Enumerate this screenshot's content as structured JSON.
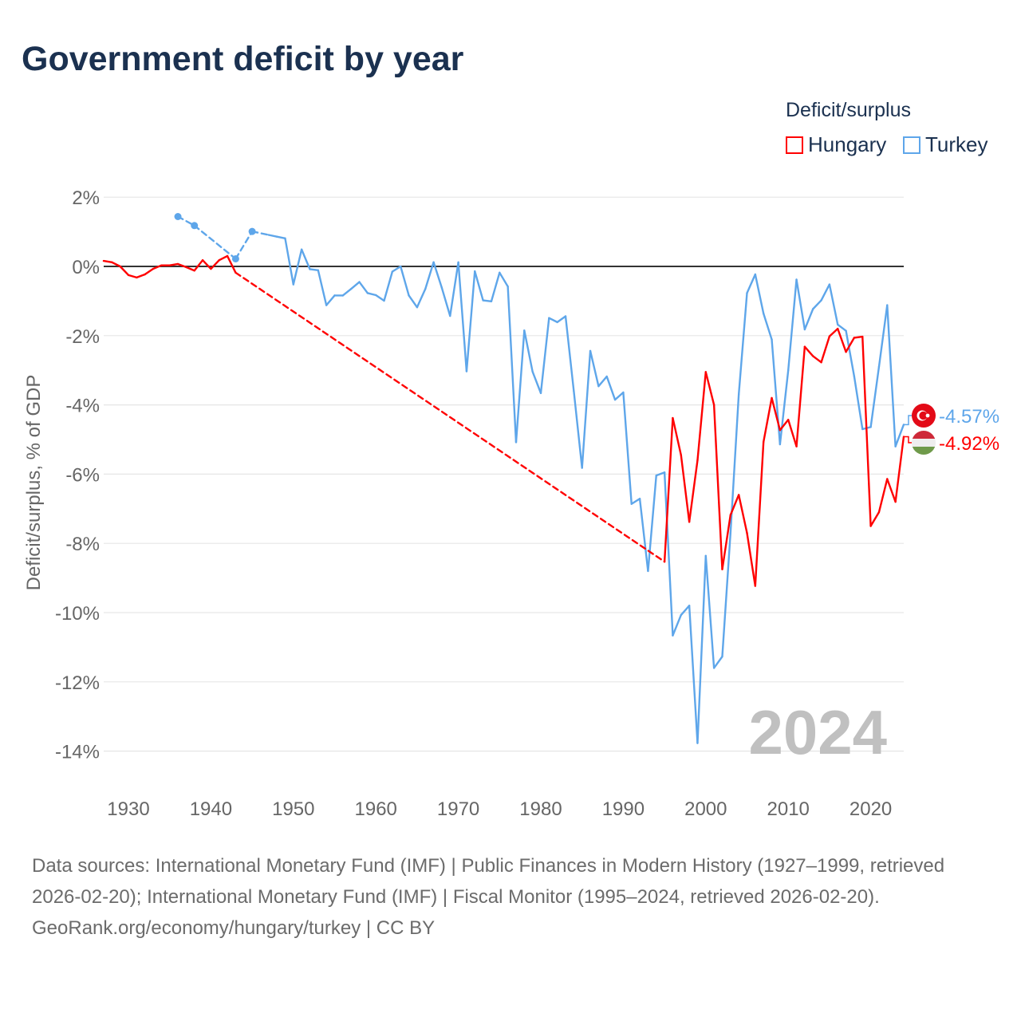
{
  "title": "Government deficit by year",
  "legend": {
    "title": "Deficit/surplus",
    "items": [
      "Hungary",
      "Turkey"
    ]
  },
  "footer": {
    "sources": "Data sources: International Monetary Fund (IMF) | Public Finances in Modern History (1927–1999, retrieved 2026-02-20); International Monetary Fund (IMF) | Fiscal Monitor (1995–2024, retrieved 2026-02-20).",
    "credit": "GeoRank.org/economy/hungary/turkey | CC BY"
  },
  "chart_data": {
    "type": "line",
    "title": "Government deficit by year",
    "xlabel": "",
    "ylabel": "Deficit/surplus, % of GDP",
    "xlim": [
      1927,
      2024
    ],
    "ylim": [
      -14,
      2
    ],
    "yticks": [
      2,
      0,
      -2,
      -4,
      -6,
      -8,
      -10,
      -12,
      -14
    ],
    "ytick_labels": [
      "2%",
      "0%",
      "-2%",
      "-4%",
      "-6%",
      "-8%",
      "-10%",
      "-12%",
      "-14%"
    ],
    "xticks": [
      1930,
      1940,
      1950,
      1960,
      1970,
      1980,
      1990,
      2000,
      2010,
      2020
    ],
    "xtick_labels": [
      "1930",
      "1940",
      "1950",
      "1960",
      "1970",
      "1980",
      "1990",
      "2000",
      "2010",
      "2020"
    ],
    "year_watermark": "2024",
    "grid": true,
    "legend_position": "top-right",
    "series": [
      {
        "name": "Hungary",
        "color": "#ff0000",
        "end_label": "-4.92%",
        "flag": "hungary-flag",
        "points": [
          [
            1927,
            0.16
          ],
          [
            1928,
            0.12
          ],
          [
            1929,
            0.0
          ],
          [
            1930,
            -0.25
          ],
          [
            1931,
            -0.32
          ],
          [
            1932,
            -0.23
          ],
          [
            1933,
            -0.07
          ],
          [
            1934,
            0.03
          ],
          [
            1935,
            0.03
          ],
          [
            1936,
            0.07
          ],
          [
            1937,
            -0.02
          ],
          [
            1938,
            -0.12
          ],
          [
            1939,
            0.18
          ],
          [
            1940,
            -0.07
          ],
          [
            1941,
            0.18
          ],
          [
            1942,
            0.3
          ],
          [
            1943,
            -0.18
          ],
          [
            1995,
            -8.53
          ],
          [
            1996,
            -4.38
          ],
          [
            1997,
            -5.45
          ],
          [
            1998,
            -7.38
          ],
          [
            1999,
            -5.6
          ],
          [
            2000,
            -3.05
          ],
          [
            2001,
            -4.0
          ],
          [
            2002,
            -8.75
          ],
          [
            2003,
            -7.18
          ],
          [
            2004,
            -6.6
          ],
          [
            2005,
            -7.7
          ],
          [
            2006,
            -9.23
          ],
          [
            2007,
            -5.07
          ],
          [
            2008,
            -3.8
          ],
          [
            2009,
            -4.73
          ],
          [
            2010,
            -4.43
          ],
          [
            2011,
            -5.2
          ],
          [
            2012,
            -2.32
          ],
          [
            2013,
            -2.59
          ],
          [
            2014,
            -2.77
          ],
          [
            2015,
            -2.02
          ],
          [
            2016,
            -1.8
          ],
          [
            2017,
            -2.47
          ],
          [
            2018,
            -2.06
          ],
          [
            2019,
            -2.03
          ],
          [
            2020,
            -7.5
          ],
          [
            2021,
            -7.1
          ],
          [
            2022,
            -6.14
          ],
          [
            2023,
            -6.8
          ],
          [
            2024,
            -4.92
          ]
        ]
      },
      {
        "name": "Turkey",
        "color": "#5ea6ea",
        "end_label": "-4.57%",
        "flag": "turkey-flag",
        "points": [
          [
            1936,
            1.44
          ],
          [
            1938,
            1.18
          ],
          [
            1943,
            0.22
          ],
          [
            1945,
            1.01
          ],
          [
            1947,
            0.91
          ],
          [
            1948,
            0.86
          ],
          [
            1949,
            0.81
          ],
          [
            1950,
            -0.52
          ],
          [
            1951,
            0.49
          ],
          [
            1952,
            -0.08
          ],
          [
            1953,
            -0.11
          ],
          [
            1954,
            -1.12
          ],
          [
            1955,
            -0.84
          ],
          [
            1956,
            -0.84
          ],
          [
            1957,
            -0.65
          ],
          [
            1958,
            -0.45
          ],
          [
            1959,
            -0.77
          ],
          [
            1960,
            -0.83
          ],
          [
            1961,
            -0.99
          ],
          [
            1962,
            -0.15
          ],
          [
            1963,
            0.0
          ],
          [
            1964,
            -0.84
          ],
          [
            1965,
            -1.18
          ],
          [
            1966,
            -0.65
          ],
          [
            1967,
            0.12
          ],
          [
            1968,
            -0.62
          ],
          [
            1969,
            -1.43
          ],
          [
            1970,
            0.12
          ],
          [
            1971,
            -3.03
          ],
          [
            1972,
            -0.14
          ],
          [
            1973,
            -0.98
          ],
          [
            1974,
            -1.01
          ],
          [
            1975,
            -0.18
          ],
          [
            1976,
            -0.58
          ],
          [
            1977,
            -5.08
          ],
          [
            1978,
            -1.85
          ],
          [
            1979,
            -3.04
          ],
          [
            1980,
            -3.66
          ],
          [
            1981,
            -1.49
          ],
          [
            1982,
            -1.61
          ],
          [
            1983,
            -1.44
          ],
          [
            1984,
            -3.6
          ],
          [
            1985,
            -5.82
          ],
          [
            1986,
            -2.44
          ],
          [
            1987,
            -3.46
          ],
          [
            1988,
            -3.18
          ],
          [
            1989,
            -3.85
          ],
          [
            1990,
            -3.64
          ],
          [
            1991,
            -6.86
          ],
          [
            1992,
            -6.71
          ],
          [
            1993,
            -8.8
          ],
          [
            1994,
            -6.04
          ],
          [
            1995,
            -5.95
          ],
          [
            1996,
            -10.66
          ],
          [
            1997,
            -10.07
          ],
          [
            1998,
            -9.8
          ],
          [
            1999,
            -13.77
          ],
          [
            2000,
            -8.36
          ],
          [
            2001,
            -11.6
          ],
          [
            2002,
            -11.27
          ],
          [
            2003,
            -7.7
          ],
          [
            2004,
            -3.7
          ],
          [
            2005,
            -0.77
          ],
          [
            2006,
            -0.23
          ],
          [
            2007,
            -1.36
          ],
          [
            2008,
            -2.11
          ],
          [
            2009,
            -5.14
          ],
          [
            2010,
            -3.0
          ],
          [
            2011,
            -0.38
          ],
          [
            2012,
            -1.82
          ],
          [
            2013,
            -1.23
          ],
          [
            2014,
            -0.98
          ],
          [
            2015,
            -0.52
          ],
          [
            2016,
            -1.68
          ],
          [
            2017,
            -1.86
          ],
          [
            2018,
            -3.18
          ],
          [
            2019,
            -4.7
          ],
          [
            2020,
            -4.64
          ],
          [
            2021,
            -2.9
          ],
          [
            2022,
            -1.12
          ],
          [
            2023,
            -5.2
          ],
          [
            2024,
            -4.57
          ]
        ]
      }
    ]
  }
}
